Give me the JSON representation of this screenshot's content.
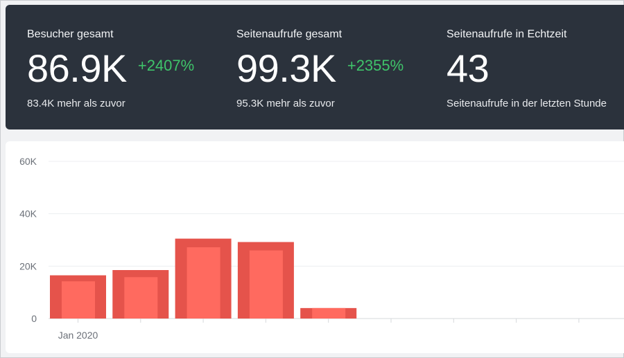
{
  "stats": [
    {
      "label": "Besucher gesamt",
      "value": "86.9K",
      "delta": "+2407%",
      "sub": "83.4K mehr als zuvor"
    },
    {
      "label": "Seitenaufrufe gesamt",
      "value": "99.3K",
      "delta": "+2355%",
      "sub": "95.3K mehr als zuvor"
    },
    {
      "label": "Seitenaufrufe in Echtzeit",
      "value": "43",
      "delta": "",
      "sub": "Seitenaufrufe in der letzten Stunde"
    }
  ],
  "colors": {
    "panel_dark": "#2b323c",
    "delta_green": "#3fc46a",
    "bar_outer": "#e5534b",
    "bar_inner": "#ff6a5f"
  },
  "chart_data": {
    "type": "bar",
    "categories": [
      "Jan 2020",
      "",
      "",
      "",
      "",
      "",
      "",
      "",
      ""
    ],
    "series": [
      {
        "values": [
          16500,
          18500,
          30500,
          29200,
          4000,
          0,
          0,
          0,
          0
        ]
      },
      {
        "values": [
          14200,
          15800,
          27200,
          26000,
          4000,
          0,
          0,
          0,
          0
        ]
      }
    ],
    "yticks": [
      "0",
      "20K",
      "40K",
      "60K"
    ],
    "ylim": [
      0,
      60000
    ],
    "grid": true,
    "title": "",
    "xlabel": "",
    "ylabel": ""
  }
}
